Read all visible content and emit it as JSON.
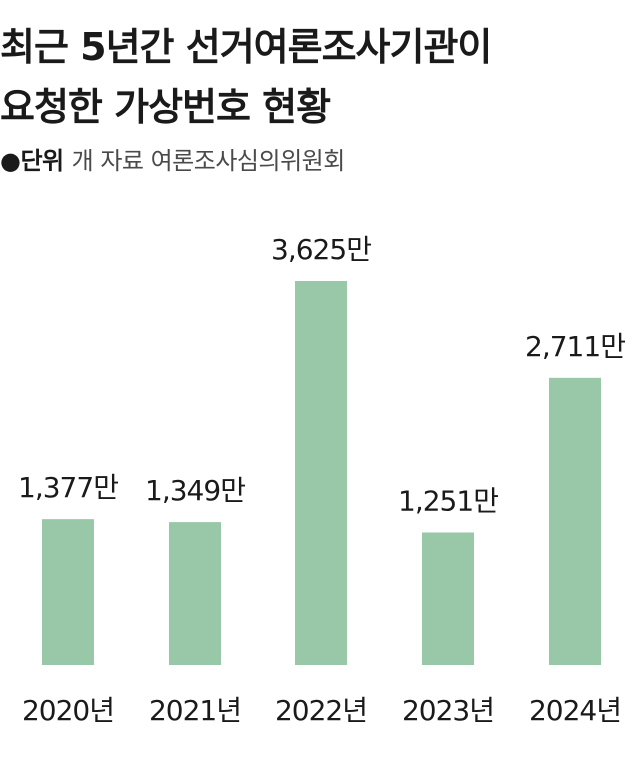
{
  "header": {
    "title_line1": "최근 5년간 선거여론조사기관이",
    "title_line2": "요청한 가상번호 현황",
    "unit_marker": "●단위",
    "source": "개 자료 여론조사심의위원회"
  },
  "chart_data": {
    "type": "bar",
    "categories": [
      "2020년",
      "2021년",
      "2022년",
      "2023년",
      "2024년"
    ],
    "values": [
      1377,
      1349,
      3625,
      1251,
      2711
    ],
    "value_labels": [
      "1,377만",
      "1,349만",
      "3,625만",
      "1,251만",
      "2,711만"
    ],
    "title": "최근 5년간 선거여론조사기관이 요청한 가상번호 현황",
    "xlabel": "",
    "ylabel": "",
    "ylim": [
      0,
      4000
    ],
    "grid": false,
    "legend": "none",
    "colors": {
      "bar": "#98c8a8",
      "text": "#1a1a1a"
    }
  }
}
